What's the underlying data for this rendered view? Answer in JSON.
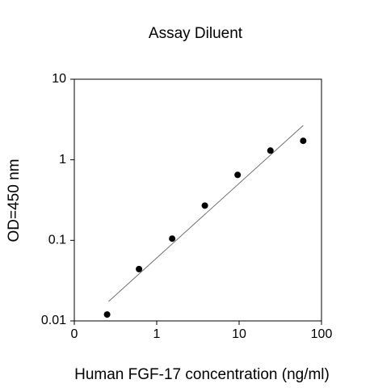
{
  "chart_data": {
    "type": "scatter",
    "title": "Assay Diluent",
    "xlabel": "Human FGF-17 concentration (ng/ml)",
    "ylabel": "OD=450 nm",
    "xscale": "log",
    "yscale": "log",
    "xlim": [
      0.1,
      100
    ],
    "ylim": [
      0.01,
      10
    ],
    "xticks": [
      {
        "value": 0.1,
        "label": "0"
      },
      1,
      10,
      100
    ],
    "yticks": [
      0.01,
      0.1,
      1,
      10
    ],
    "color": "#000000",
    "x": [
      0.25,
      0.61,
      1.54,
      3.84,
      9.6,
      24,
      60
    ],
    "values": [
      0.012,
      0.044,
      0.105,
      0.27,
      0.65,
      1.3,
      1.72
    ],
    "fit": {
      "x": [
        0.26,
        60
      ],
      "values": [
        0.0174,
        2.67
      ]
    }
  }
}
